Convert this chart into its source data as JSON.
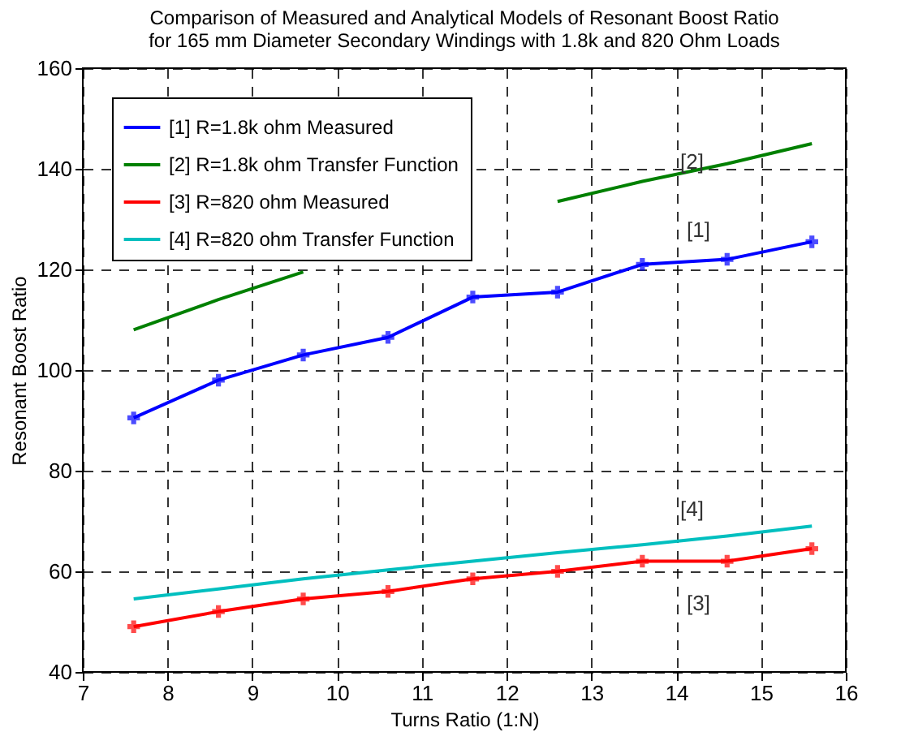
{
  "chart_data": {
    "type": "line",
    "title": [
      "Comparison of Measured and Analytical Models of Resonant Boost Ratio",
      "for 165 mm Diameter Secondary Windings with 1.8k and 820 Ohm Loads"
    ],
    "xlabel": "Turns Ratio (1:N)",
    "ylabel": "Resonant Boost Ratio",
    "x": [
      7.6,
      8.6,
      9.6,
      10.6,
      11.6,
      12.6,
      13.6,
      14.6,
      15.6
    ],
    "series": [
      {
        "name": "[1] R=1.8k ohm Measured",
        "color": "#0000ff",
        "marker": "cross",
        "values": [
          90.5,
          98,
          103,
          106.5,
          114.5,
          115.5,
          121,
          122,
          125.5
        ]
      },
      {
        "name": "[2] R=1.8k ohm Transfer Function",
        "color": "#008000",
        "marker": "none",
        "values": [
          108,
          114,
          119.5,
          null,
          null,
          133.5,
          137.5,
          141,
          145
        ]
      },
      {
        "name": "[3] R=820 ohm  Measured",
        "color": "#ff0000",
        "marker": "cross",
        "values": [
          49,
          52,
          54.5,
          56,
          58.5,
          60,
          62,
          62,
          64.5
        ]
      },
      {
        "name": "[4] R=820 ohm  Transfer Function",
        "color": "#00bfbf",
        "marker": "none",
        "values": [
          54.5,
          56.5,
          58.5,
          60.3,
          62,
          63.7,
          65.3,
          67,
          69
        ]
      }
    ],
    "annotations": [
      "[2]",
      "[1]",
      "[4]",
      "[3]"
    ],
    "xlim": [
      7,
      16
    ],
    "xticks": [
      7,
      8,
      9,
      10,
      11,
      12,
      13,
      14,
      15,
      16
    ],
    "ylim": [
      40,
      160
    ],
    "yticks": [
      40,
      60,
      80,
      100,
      120,
      140,
      160
    ],
    "grid": true,
    "legend": "top left",
    "line_style": "solid"
  }
}
